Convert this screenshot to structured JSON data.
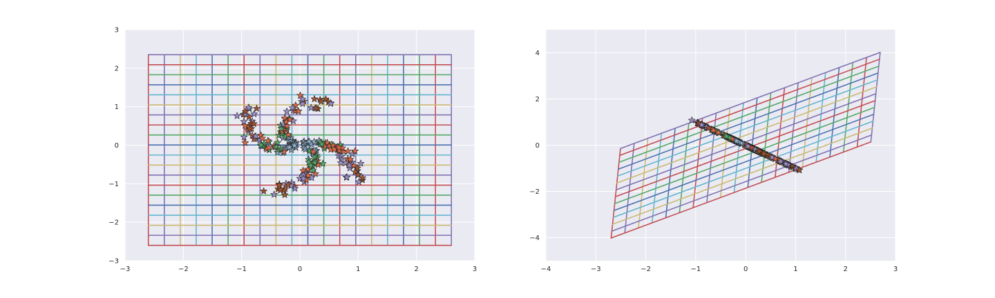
{
  "palette": [
    "#4c72b0",
    "#55a868",
    "#c44e52",
    "#8172b2",
    "#ccb974",
    "#64b5cd"
  ],
  "star_colors": {
    "brown": "#a0522d",
    "orange": "#dd6a45",
    "green": "#55a868",
    "purple": "#9c8dc8",
    "lightblue": "#8fb0cc"
  },
  "chart_data": [
    {
      "type": "scatter",
      "title": "",
      "xlabel": "",
      "ylabel": "",
      "xlim": [
        -3,
        3
      ],
      "ylim": [
        -3,
        3
      ],
      "xticks": [
        -3,
        -2,
        -1,
        0,
        1,
        2,
        3
      ],
      "yticks": [
        -3,
        -2,
        -1,
        0,
        1,
        2,
        3
      ],
      "grid": true,
      "grid_transform": [
        [
          1,
          0
        ],
        [
          0,
          1
        ]
      ],
      "grid_extent": {
        "u": [
          -2.6,
          2.6
        ],
        "v": [
          -2.6,
          2.35
        ],
        "u_lines": 20,
        "v_lines": 20
      },
      "spiral_transform": [
        [
          1,
          0
        ],
        [
          0,
          1
        ]
      ]
    },
    {
      "type": "scatter",
      "title": "",
      "xlabel": "",
      "ylabel": "",
      "xlim": [
        -4,
        3
      ],
      "ylim": [
        -5,
        5
      ],
      "xticks": [
        -4,
        -3,
        -2,
        -1,
        0,
        1,
        2,
        3
      ],
      "yticks": [
        -4,
        -2,
        0,
        2,
        4
      ],
      "grid": true,
      "grid_transform": [
        [
          1.0,
          0.075
        ],
        [
          0.8,
          1.55
        ]
      ],
      "grid_extent": {
        "u": [
          -2.6,
          2.6
        ],
        "v": [
          -1.25,
          1.25
        ],
        "u_lines": 20,
        "v_lines": 14
      },
      "spiral_transform": [
        [
          1,
          0
        ],
        [
          -1,
          0
        ]
      ]
    }
  ]
}
